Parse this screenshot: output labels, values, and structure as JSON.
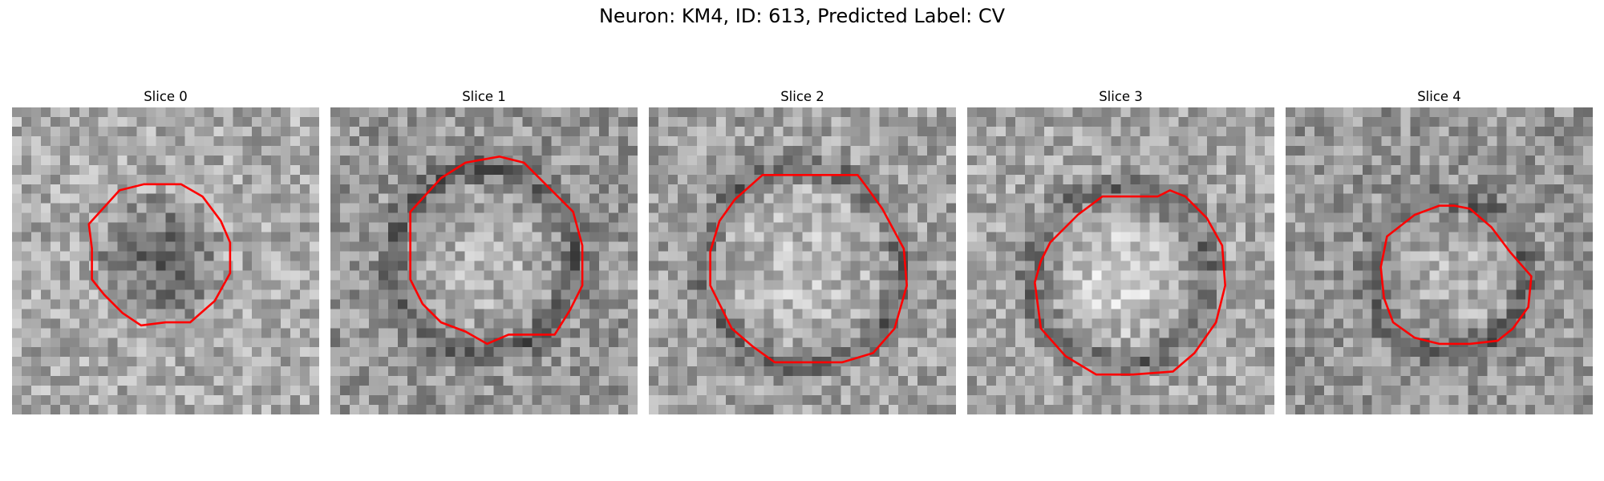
{
  "figure": {
    "title": "Neuron: KM4, ID: 613, Predicted Label: CV",
    "panels": [
      {
        "title": "Slice 0",
        "seed": 11,
        "base_gray": 170,
        "blob_center": [
          0.48,
          0.5
        ],
        "blob_radius": 0.21,
        "blob_type": "dark",
        "ring": false,
        "contour": [
          [
            0.25,
            0.38
          ],
          [
            0.35,
            0.27
          ],
          [
            0.43,
            0.25
          ],
          [
            0.55,
            0.25
          ],
          [
            0.62,
            0.29
          ],
          [
            0.68,
            0.37
          ],
          [
            0.71,
            0.44
          ],
          [
            0.71,
            0.54
          ],
          [
            0.66,
            0.63
          ],
          [
            0.58,
            0.7
          ],
          [
            0.5,
            0.7
          ],
          [
            0.42,
            0.71
          ],
          [
            0.36,
            0.67
          ],
          [
            0.3,
            0.61
          ],
          [
            0.26,
            0.56
          ],
          [
            0.26,
            0.46
          ]
        ],
        "contour_color": "#ff0000"
      },
      {
        "title": "Slice 1",
        "seed": 23,
        "base_gray": 150,
        "blob_center": [
          0.5,
          0.5
        ],
        "blob_radius": 0.24,
        "blob_type": "ring",
        "ring": true,
        "contour": [
          [
            0.26,
            0.34
          ],
          [
            0.36,
            0.23
          ],
          [
            0.44,
            0.18
          ],
          [
            0.55,
            0.16
          ],
          [
            0.63,
            0.18
          ],
          [
            0.72,
            0.27
          ],
          [
            0.79,
            0.34
          ],
          [
            0.82,
            0.45
          ],
          [
            0.82,
            0.58
          ],
          [
            0.78,
            0.66
          ],
          [
            0.73,
            0.74
          ],
          [
            0.67,
            0.74
          ],
          [
            0.58,
            0.74
          ],
          [
            0.51,
            0.77
          ],
          [
            0.44,
            0.73
          ],
          [
            0.36,
            0.7
          ],
          [
            0.3,
            0.64
          ],
          [
            0.26,
            0.56
          ],
          [
            0.26,
            0.44
          ]
        ],
        "contour_color": "#ff0000"
      },
      {
        "title": "Slice 2",
        "seed": 37,
        "base_gray": 160,
        "blob_center": [
          0.5,
          0.52
        ],
        "blob_radius": 0.26,
        "blob_type": "ring",
        "ring": true,
        "contour": [
          [
            0.23,
            0.37
          ],
          [
            0.28,
            0.3
          ],
          [
            0.37,
            0.22
          ],
          [
            0.42,
            0.22
          ],
          [
            0.57,
            0.22
          ],
          [
            0.68,
            0.22
          ],
          [
            0.71,
            0.26
          ],
          [
            0.76,
            0.33
          ],
          [
            0.83,
            0.46
          ],
          [
            0.84,
            0.58
          ],
          [
            0.8,
            0.72
          ],
          [
            0.73,
            0.8
          ],
          [
            0.63,
            0.83
          ],
          [
            0.53,
            0.83
          ],
          [
            0.41,
            0.83
          ],
          [
            0.34,
            0.78
          ],
          [
            0.27,
            0.72
          ],
          [
            0.2,
            0.58
          ],
          [
            0.2,
            0.47
          ]
        ],
        "contour_color": "#ff0000"
      },
      {
        "title": "Slice 3",
        "seed": 53,
        "base_gray": 165,
        "blob_center": [
          0.5,
          0.55
        ],
        "blob_radius": 0.2,
        "blob_type": "bright",
        "ring": true,
        "contour": [
          [
            0.27,
            0.44
          ],
          [
            0.36,
            0.35
          ],
          [
            0.44,
            0.29
          ],
          [
            0.62,
            0.29
          ],
          [
            0.66,
            0.27
          ],
          [
            0.71,
            0.29
          ],
          [
            0.78,
            0.36
          ],
          [
            0.83,
            0.45
          ],
          [
            0.84,
            0.58
          ],
          [
            0.81,
            0.7
          ],
          [
            0.74,
            0.8
          ],
          [
            0.67,
            0.86
          ],
          [
            0.54,
            0.87
          ],
          [
            0.42,
            0.87
          ],
          [
            0.32,
            0.81
          ],
          [
            0.24,
            0.72
          ],
          [
            0.22,
            0.57
          ],
          [
            0.24,
            0.5
          ]
        ],
        "contour_color": "#ff0000"
      },
      {
        "title": "Slice 4",
        "seed": 71,
        "base_gray": 150,
        "blob_center": [
          0.53,
          0.55
        ],
        "blob_radius": 0.2,
        "blob_type": "ring",
        "ring": true,
        "contour": [
          [
            0.33,
            0.42
          ],
          [
            0.42,
            0.35
          ],
          [
            0.5,
            0.32
          ],
          [
            0.55,
            0.32
          ],
          [
            0.6,
            0.33
          ],
          [
            0.67,
            0.39
          ],
          [
            0.73,
            0.47
          ],
          [
            0.8,
            0.55
          ],
          [
            0.79,
            0.65
          ],
          [
            0.74,
            0.72
          ],
          [
            0.69,
            0.76
          ],
          [
            0.6,
            0.77
          ],
          [
            0.5,
            0.77
          ],
          [
            0.42,
            0.75
          ],
          [
            0.35,
            0.7
          ],
          [
            0.32,
            0.62
          ],
          [
            0.31,
            0.52
          ]
        ],
        "contour_color": "#ff0000"
      }
    ]
  }
}
